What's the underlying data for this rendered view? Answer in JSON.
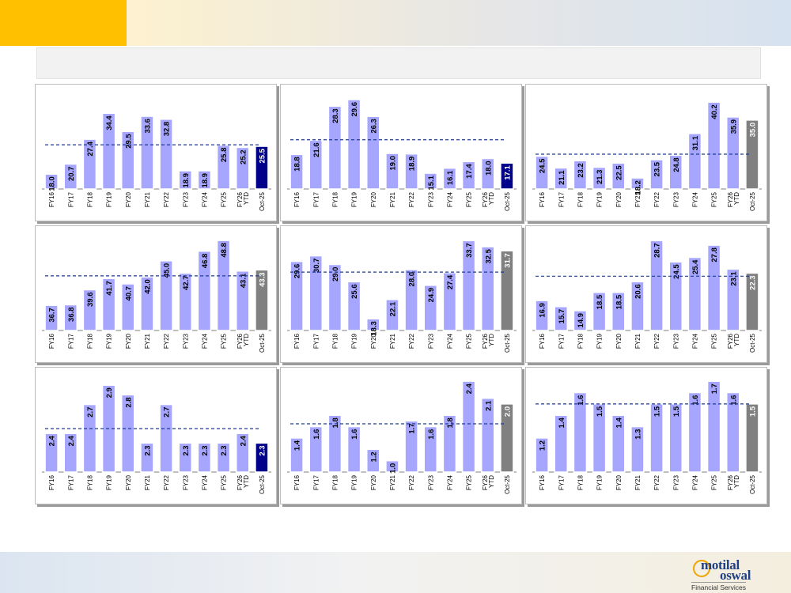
{
  "brand": {
    "name_line1": "motilal",
    "name_line2": "oswal",
    "tagline": "Financial Services"
  },
  "colors": {
    "accent": "#ffc000",
    "bar": "#a6a6ff",
    "bar_last_dark": "#00008b",
    "bar_last_grey": "#808080",
    "avg_line": "#1f3a93"
  },
  "chart_data": [
    {
      "type": "bar",
      "categories": [
        "FY16",
        "FY17",
        "FY18",
        "FY19",
        "FY20",
        "FY21",
        "FY22",
        "FY23",
        "FY24",
        "FY25",
        "FY26 YTD",
        "Oct-25"
      ],
      "values": [
        18.0,
        20.7,
        27.4,
        34.4,
        29.5,
        33.6,
        32.8,
        18.9,
        18.9,
        25.8,
        25.2,
        25.5
      ],
      "labels": [
        "18.0",
        "20.7",
        "27.4",
        "34.4",
        "29.5",
        "33.6",
        "32.8",
        "18.9",
        "18.9",
        "25.8",
        "25.2",
        "25.5"
      ],
      "average": 25.9,
      "ylim": [
        14,
        40
      ],
      "last_bar_color": "#00008b"
    },
    {
      "type": "bar",
      "categories": [
        "FY16",
        "FY17",
        "FY18",
        "FY19",
        "FY20",
        "FY21",
        "FY22",
        "FY23",
        "FY24",
        "FY25",
        "FY26 YTD",
        "Oct-25"
      ],
      "values": [
        18.8,
        21.6,
        28.3,
        29.6,
        26.3,
        19.0,
        18.9,
        15.1,
        16.1,
        17.4,
        18.0,
        17.1
      ],
      "labels": [
        "18.8",
        "21.6",
        "28.3",
        "29.6",
        "26.3",
        "19.0",
        "18.9",
        "15.1",
        "16.1",
        "17.4",
        "18.0",
        "17.1"
      ],
      "average": 21.7,
      "ylim": [
        12,
        31
      ],
      "last_bar_color": "#00008b"
    },
    {
      "type": "bar",
      "categories": [
        "FY16",
        "FY17",
        "FY18",
        "FY19",
        "FY20",
        "FY21",
        "FY22",
        "FY23",
        "FY24",
        "FY25",
        "FY26 YTD",
        "Oct-25"
      ],
      "values": [
        24.5,
        21.1,
        23.2,
        21.3,
        22.5,
        18.2,
        23.5,
        24.8,
        31.1,
        40.2,
        35.9,
        35.0
      ],
      "labels": [
        "24.5",
        "21.1",
        "23.2",
        "21.3",
        "22.5",
        "18.2",
        "23.5",
        "24.8",
        "31.1",
        "40.2",
        "35.9",
        "35.0"
      ],
      "average": 25.1,
      "ylim": [
        15,
        43
      ],
      "last_bar_color": "#808080"
    },
    {
      "type": "bar",
      "categories": [
        "FY16",
        "FY17",
        "FY18",
        "FY19",
        "FY20",
        "FY21",
        "FY22",
        "FY23",
        "FY24",
        "FY25",
        "FY26 YTD",
        "Oct-25"
      ],
      "values": [
        36.7,
        36.8,
        39.6,
        41.7,
        40.7,
        42.0,
        45.0,
        42.7,
        46.8,
        48.8,
        43.1,
        43.3
      ],
      "labels": [
        "36.7",
        "36.8",
        "39.6",
        "41.7",
        "40.7",
        "42.0",
        "45.0",
        "42.7",
        "46.8",
        "48.8",
        "43.1",
        "43.3"
      ],
      "average": 42.2,
      "ylim": [
        32,
        50
      ],
      "last_bar_color": "#808080"
    },
    {
      "type": "bar",
      "categories": [
        "FY16",
        "FY17",
        "FY18",
        "FY19",
        "FY20",
        "FY21",
        "FY22",
        "FY23",
        "FY24",
        "FY25",
        "FY26 YTD",
        "Oct-25"
      ],
      "values": [
        29.6,
        30.7,
        29.0,
        25.6,
        18.3,
        22.1,
        28.0,
        24.9,
        27.4,
        33.7,
        32.5,
        31.7
      ],
      "labels": [
        "29.6",
        "30.7",
        "29.0",
        "25.6",
        "18.3",
        "22.1",
        "28.0",
        "24.9",
        "27.4",
        "33.7",
        "32.5",
        "31.7"
      ],
      "average": 27.5,
      "ylim": [
        16,
        35
      ],
      "last_bar_color": "#808080"
    },
    {
      "type": "bar",
      "categories": [
        "FY16",
        "FY17",
        "FY18",
        "FY19",
        "FY20",
        "FY21",
        "FY22",
        "FY23",
        "FY24",
        "FY25",
        "FY26 YTD",
        "Oct-25"
      ],
      "values": [
        16.9,
        15.7,
        14.9,
        18.5,
        18.5,
        20.6,
        28.7,
        24.5,
        25.4,
        27.8,
        23.1,
        22.3
      ],
      "labels": [
        "16.9",
        "15.7",
        "14.9",
        "18.5",
        "18.5",
        "20.6",
        "28.7",
        "24.5",
        "25.4",
        "27.8",
        "23.1",
        "22.3"
      ],
      "average": 21.7,
      "ylim": [
        11,
        30
      ],
      "last_bar_color": "#808080"
    },
    {
      "type": "bar",
      "categories": [
        "FY16",
        "FY17",
        "FY18",
        "FY19",
        "FY20",
        "FY21",
        "FY22",
        "FY23",
        "FY24",
        "FY25",
        "FY26 YTD",
        "Oct-25"
      ],
      "values": [
        2.4,
        2.4,
        2.7,
        2.9,
        2.8,
        2.3,
        2.7,
        2.3,
        2.3,
        2.3,
        2.4,
        2.3
      ],
      "labels": [
        "2.4",
        "2.4",
        "2.7",
        "2.9",
        "2.8",
        "2.3",
        "2.7",
        "2.3",
        "2.3",
        "2.3",
        "2.4",
        "2.3"
      ],
      "average": 2.45,
      "ylim": [
        2.0,
        3.0
      ],
      "last_bar_color": "#00008b"
    },
    {
      "type": "bar",
      "categories": [
        "FY16",
        "FY17",
        "FY18",
        "FY19",
        "FY20",
        "FY21",
        "FY22",
        "FY23",
        "FY24",
        "FY25",
        "FY26 YTD",
        "Oct-25"
      ],
      "values": [
        1.4,
        1.6,
        1.8,
        1.6,
        1.2,
        1.0,
        1.7,
        1.6,
        1.8,
        2.4,
        2.1,
        2.0
      ],
      "labels": [
        "1.4",
        "1.6",
        "1.8",
        "1.6",
        "1.2",
        "1.0",
        "1.7",
        "1.6",
        "1.8",
        "2.4",
        "2.1",
        "2.0"
      ],
      "average": 1.65,
      "ylim": [
        0.8,
        2.5
      ],
      "last_bar_color": "#808080"
    },
    {
      "type": "bar",
      "categories": [
        "FY16",
        "FY17",
        "FY18",
        "FY19",
        "FY20",
        "FY21",
        "FY22",
        "FY23",
        "FY24",
        "FY25",
        "FY26 YTD",
        "Oct-25"
      ],
      "values": [
        1.2,
        1.4,
        1.6,
        1.5,
        1.4,
        1.3,
        1.5,
        1.5,
        1.6,
        1.7,
        1.6,
        1.5
      ],
      "labels": [
        "1.2",
        "1.4",
        "1.6",
        "1.5",
        "1.4",
        "1.3",
        "1.5",
        "1.5",
        "1.6",
        "1.7",
        "1.6",
        "1.5"
      ],
      "average": 1.5,
      "ylim": [
        0.9,
        1.75
      ],
      "last_bar_color": "#808080"
    }
  ]
}
